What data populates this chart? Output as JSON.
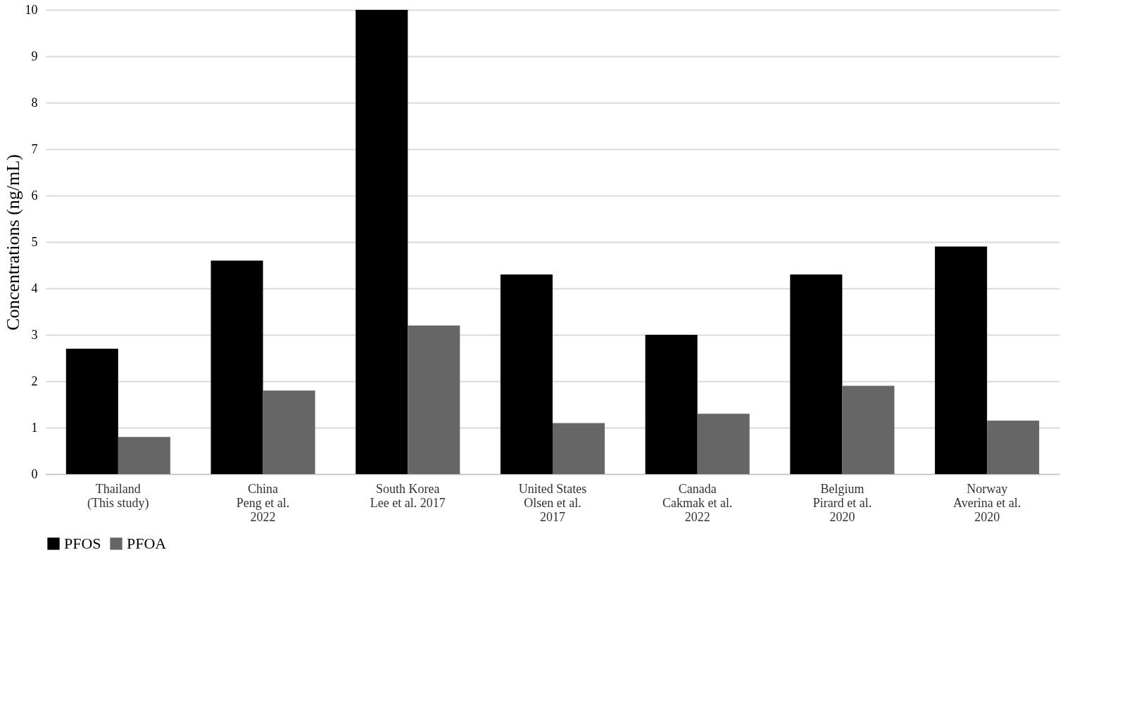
{
  "chart_data": {
    "type": "bar",
    "ylabel": "Concentrations (ng/mL)",
    "categories": [
      "Thailand\n(This study)",
      "China\nPeng et al.\n2022",
      "South Korea\nLee et al. 2017",
      "United States\nOlsen et al.\n2017",
      "Canada\nCakmak et al.\n2022",
      "Belgium\nPirard et al.\n2020",
      "Norway\nAverina et al.\n2020"
    ],
    "series": [
      {
        "name": "PFOS",
        "color": "#000000",
        "values": [
          2.7,
          4.6,
          10.0,
          4.3,
          3.0,
          4.3,
          4.9
        ]
      },
      {
        "name": "PFOA",
        "color": "#666666",
        "values": [
          0.8,
          1.8,
          3.2,
          1.1,
          1.3,
          1.9,
          1.15
        ]
      }
    ],
    "ylim": [
      0,
      10
    ],
    "yticks": [
      0,
      1,
      2,
      3,
      4,
      5,
      6,
      7,
      8,
      9,
      10
    ],
    "grid": "y",
    "legend": "bottom"
  }
}
